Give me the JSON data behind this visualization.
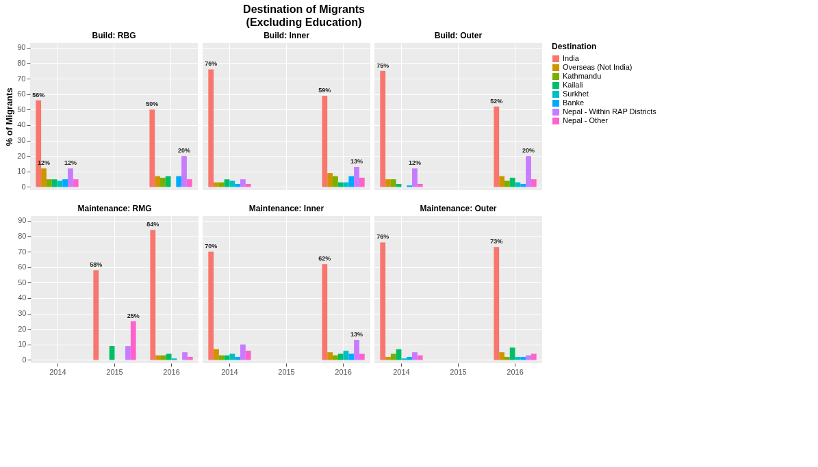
{
  "chart_data": [
    {
      "type": "other",
      "title": "Destination of Migrants",
      "subtitle": "(Excluding Education)"
    },
    {
      "type": "bar",
      "title": "Build: RBG",
      "ylabel": "% of Migrants",
      "categories": [
        "2014",
        "2015",
        "2016"
      ],
      "ylim": [
        -2,
        93
      ],
      "yticks": [
        0,
        10,
        20,
        30,
        40,
        50,
        60,
        70,
        80,
        90
      ],
      "grid": true,
      "tick_labels": "y",
      "series": [
        {
          "color": "#f8766d",
          "values": [
            56,
            null,
            50
          ],
          "value_labels": [
            "56%",
            null,
            "50%"
          ]
        },
        {
          "color": "#cd9600",
          "values": [
            12,
            null,
            7
          ],
          "value_labels": [
            "12%",
            null,
            null
          ]
        },
        {
          "color": "#7cae00",
          "values": [
            5,
            null,
            6
          ]
        },
        {
          "color": "#00be67",
          "values": [
            5,
            null,
            7
          ]
        },
        {
          "color": "#00bfc4",
          "values": [
            4,
            null,
            null
          ]
        },
        {
          "color": "#00a9ff",
          "values": [
            5,
            null,
            7
          ]
        },
        {
          "color": "#c77cff",
          "values": [
            12,
            null,
            20
          ],
          "value_labels": [
            "12%",
            null,
            "20%"
          ]
        },
        {
          "color": "#ff61cc",
          "values": [
            5,
            null,
            5
          ]
        }
      ]
    },
    {
      "type": "bar",
      "title": "Build: Inner",
      "categories": [
        "2014",
        "2015",
        "2016"
      ],
      "ylim": [
        -2,
        93
      ],
      "yticks": [
        0,
        10,
        20,
        30,
        40,
        50,
        60,
        70,
        80,
        90
      ],
      "grid": true,
      "tick_labels": false,
      "series": [
        {
          "color": "#f8766d",
          "values": [
            76,
            null,
            59
          ],
          "value_labels": [
            "76%",
            null,
            "59%"
          ]
        },
        {
          "color": "#cd9600",
          "values": [
            3,
            null,
            9
          ]
        },
        {
          "color": "#7cae00",
          "values": [
            3,
            null,
            7
          ]
        },
        {
          "color": "#00be67",
          "values": [
            5,
            null,
            3
          ]
        },
        {
          "color": "#00bfc4",
          "values": [
            4,
            null,
            3
          ]
        },
        {
          "color": "#00a9ff",
          "values": [
            2,
            null,
            7
          ]
        },
        {
          "color": "#c77cff",
          "values": [
            5,
            null,
            13
          ],
          "value_labels": [
            null,
            null,
            "13%"
          ]
        },
        {
          "color": "#ff61cc",
          "values": [
            2,
            null,
            6
          ]
        }
      ]
    },
    {
      "type": "bar",
      "title": "Build: Outer",
      "legend_title": "Destination",
      "legend": "right",
      "categories": [
        "2014",
        "2015",
        "2016"
      ],
      "ylim": [
        -2,
        93
      ],
      "yticks": [
        0,
        10,
        20,
        30,
        40,
        50,
        60,
        70,
        80,
        90
      ],
      "grid": true,
      "tick_labels": false,
      "series": [
        {
          "name": "India",
          "color": "#f8766d",
          "values": [
            75,
            null,
            52
          ],
          "value_labels": [
            "75%",
            null,
            "52%"
          ]
        },
        {
          "name": "Overseas (Not India)",
          "color": "#cd9600",
          "values": [
            5,
            null,
            7
          ]
        },
        {
          "name": "Kathmandu",
          "color": "#7cae00",
          "values": [
            5,
            null,
            4
          ]
        },
        {
          "name": "Kailali",
          "color": "#00be67",
          "values": [
            2,
            null,
            6
          ]
        },
        {
          "name": "Surkhet",
          "color": "#00bfc4",
          "values": [
            null,
            null,
            3
          ]
        },
        {
          "name": "Banke",
          "color": "#00a9ff",
          "values": [
            1,
            null,
            2
          ]
        },
        {
          "name": "Nepal - Within RAP Districts",
          "color": "#c77cff",
          "values": [
            12,
            null,
            20
          ],
          "value_labels": [
            "12%",
            null,
            "20%"
          ]
        },
        {
          "name": "Nepal - Other",
          "color": "#ff61cc",
          "values": [
            2,
            null,
            5
          ]
        }
      ]
    },
    {
      "type": "bar",
      "title": "Maintenance: RMG",
      "categories": [
        "2014",
        "2015",
        "2016"
      ],
      "ylim": [
        -2,
        93
      ],
      "yticks": [
        0,
        10,
        20,
        30,
        40,
        50,
        60,
        70,
        80,
        90
      ],
      "grid": true,
      "series": [
        {
          "color": "#f8766d",
          "values": [
            null,
            58,
            84
          ],
          "value_labels": [
            null,
            "58%",
            "84%"
          ]
        },
        {
          "color": "#cd9600",
          "values": [
            null,
            null,
            3
          ]
        },
        {
          "color": "#7cae00",
          "values": [
            null,
            null,
            3
          ]
        },
        {
          "color": "#00be67",
          "values": [
            null,
            9,
            4
          ]
        },
        {
          "color": "#00bfc4",
          "values": [
            null,
            null,
            1
          ]
        },
        {
          "color": "#00a9ff",
          "values": [
            null,
            null,
            null
          ]
        },
        {
          "color": "#c77cff",
          "values": [
            null,
            9,
            5
          ]
        },
        {
          "color": "#ff61cc",
          "values": [
            null,
            25,
            2
          ],
          "value_labels": [
            null,
            "25%",
            null
          ]
        }
      ]
    },
    {
      "type": "bar",
      "title": "Maintenance: Inner",
      "categories": [
        "2014",
        "2015",
        "2016"
      ],
      "ylim": [
        -2,
        93
      ],
      "yticks": [
        0,
        10,
        20,
        30,
        40,
        50,
        60,
        70,
        80,
        90
      ],
      "grid": true,
      "tick_labels": "x",
      "series": [
        {
          "color": "#f8766d",
          "values": [
            70,
            null,
            62
          ],
          "value_labels": [
            "70%",
            null,
            "62%"
          ]
        },
        {
          "color": "#cd9600",
          "values": [
            7,
            null,
            5
          ]
        },
        {
          "color": "#7cae00",
          "values": [
            3,
            null,
            3
          ]
        },
        {
          "color": "#00be67",
          "values": [
            3,
            null,
            4
          ]
        },
        {
          "color": "#00bfc4",
          "values": [
            4,
            null,
            6
          ]
        },
        {
          "color": "#00a9ff",
          "values": [
            2,
            null,
            4
          ]
        },
        {
          "color": "#c77cff",
          "values": [
            10,
            null,
            13
          ],
          "value_labels": [
            null,
            null,
            "13%"
          ]
        },
        {
          "color": "#ff61cc",
          "values": [
            6,
            null,
            4
          ]
        }
      ]
    },
    {
      "type": "bar",
      "title": "Maintenance: Outer",
      "categories": [
        "2014",
        "2015",
        "2016"
      ],
      "ylim": [
        -2,
        93
      ],
      "yticks": [
        0,
        10,
        20,
        30,
        40,
        50,
        60,
        70,
        80,
        90
      ],
      "grid": true,
      "tick_labels": "x",
      "series": [
        {
          "color": "#f8766d",
          "values": [
            76,
            null,
            73
          ],
          "value_labels": [
            "76%",
            null,
            "73%"
          ]
        },
        {
          "color": "#cd9600",
          "values": [
            2,
            null,
            5
          ]
        },
        {
          "color": "#7cae00",
          "values": [
            4,
            null,
            2
          ]
        },
        {
          "color": "#00be67",
          "values": [
            7,
            null,
            8
          ]
        },
        {
          "color": "#00bfc4",
          "values": [
            1,
            null,
            2
          ]
        },
        {
          "color": "#00a9ff",
          "values": [
            2,
            null,
            2
          ]
        },
        {
          "color": "#c77cff",
          "values": [
            5,
            null,
            3
          ]
        },
        {
          "color": "#ff61cc",
          "values": [
            3,
            null,
            4
          ]
        }
      ]
    }
  ]
}
